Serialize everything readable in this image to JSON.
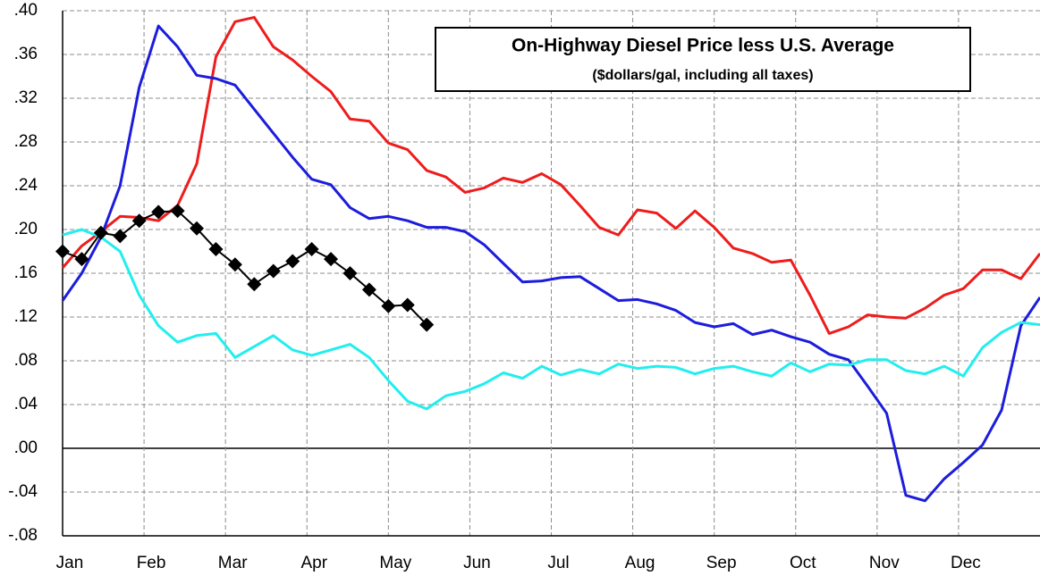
{
  "chart_data": {
    "type": "line",
    "title": "On-Highway Diesel Price  less U.S. Average",
    "subtitle": "($dollars/gal, including all taxes)",
    "x": [
      0,
      1,
      2,
      3,
      4,
      5,
      6,
      7,
      8,
      9,
      10,
      11,
      12,
      13,
      14,
      15,
      16,
      17,
      18,
      19,
      20,
      21,
      22,
      23,
      24,
      25,
      26,
      27,
      28,
      29,
      30,
      31,
      32,
      33,
      34,
      35,
      36,
      37,
      38,
      39,
      40,
      41,
      42,
      43,
      44,
      45,
      46,
      47,
      48,
      49,
      50,
      51
    ],
    "xlim": [
      0,
      51
    ],
    "xticks": [
      {
        "value": 0,
        "label": "Jan"
      },
      {
        "value": 4.25,
        "label": "Feb"
      },
      {
        "value": 8.5,
        "label": "Mar"
      },
      {
        "value": 12.75,
        "label": "Apr"
      },
      {
        "value": 17,
        "label": "May"
      },
      {
        "value": 21.25,
        "label": "Jun"
      },
      {
        "value": 25.5,
        "label": "Jul"
      },
      {
        "value": 29.75,
        "label": "Aug"
      },
      {
        "value": 34,
        "label": "Sep"
      },
      {
        "value": 38.25,
        "label": "Oct"
      },
      {
        "value": 42.5,
        "label": "Nov"
      },
      {
        "value": 46.75,
        "label": "Dec"
      }
    ],
    "ylim": [
      -0.08,
      0.4
    ],
    "yticks": [
      {
        "value": -0.08,
        "label": "-.08"
      },
      {
        "value": -0.04,
        "label": "-.04"
      },
      {
        "value": 0,
        "label": ".00"
      },
      {
        "value": 0.04,
        "label": ".04"
      },
      {
        "value": 0.08,
        "label": ".08"
      },
      {
        "value": 0.12,
        "label": ".12"
      },
      {
        "value": 0.16,
        "label": ".16"
      },
      {
        "value": 0.2,
        "label": ".20"
      },
      {
        "value": 0.24,
        "label": ".24"
      },
      {
        "value": 0.28,
        "label": ".28"
      },
      {
        "value": 0.32,
        "label": ".32"
      },
      {
        "value": 0.36,
        "label": ".36"
      },
      {
        "value": 0.4,
        "label": ".40"
      }
    ],
    "grid": true,
    "series": [
      {
        "color": "#ee1c1c",
        "values": [
          0.165,
          0.185,
          0.198,
          0.212,
          0.211,
          0.208,
          0.222,
          0.26,
          0.358,
          0.39,
          0.394,
          0.367,
          0.355,
          0.34,
          0.326,
          0.301,
          0.299,
          0.279,
          0.273,
          0.254,
          0.248,
          0.234,
          0.238,
          0.247,
          0.243,
          0.251,
          0.241,
          0.222,
          0.202,
          0.195,
          0.218,
          0.215,
          0.201,
          0.217,
          0.202,
          0.183,
          0.178,
          0.17,
          0.172,
          0.14,
          0.105,
          0.111,
          0.122,
          0.12,
          0.119,
          0.128,
          0.14,
          0.146,
          0.163,
          0.163,
          0.155,
          0.178
        ]
      },
      {
        "color": "#1c1cdd",
        "values": [
          0.135,
          0.16,
          0.193,
          0.24,
          0.33,
          0.386,
          0.367,
          0.341,
          0.338,
          0.332,
          0.31,
          0.288,
          0.266,
          0.246,
          0.241,
          0.22,
          0.21,
          0.212,
          0.208,
          0.202,
          0.202,
          0.198,
          0.186,
          0.169,
          0.152,
          0.153,
          0.156,
          0.157,
          0.146,
          0.135,
          0.136,
          0.132,
          0.126,
          0.115,
          0.111,
          0.114,
          0.104,
          0.108,
          0.102,
          0.097,
          0.086,
          0.081,
          0.057,
          0.032,
          -0.043,
          -0.048,
          -0.028,
          -0.013,
          0.003,
          0.035,
          0.112,
          0.138
        ]
      },
      {
        "color": "#22eeee",
        "values": [
          0.195,
          0.2,
          0.193,
          0.18,
          0.14,
          0.112,
          0.097,
          0.103,
          0.105,
          0.083,
          0.093,
          0.103,
          0.09,
          0.085,
          0.09,
          0.095,
          0.083,
          0.062,
          0.043,
          0.036,
          0.048,
          0.052,
          0.059,
          0.069,
          0.064,
          0.075,
          0.067,
          0.072,
          0.068,
          0.077,
          0.073,
          0.075,
          0.074,
          0.068,
          0.073,
          0.075,
          0.07,
          0.066,
          0.078,
          0.07,
          0.077,
          0.076,
          0.081,
          0.081,
          0.071,
          0.068,
          0.075,
          0.066,
          0.092,
          0.106,
          0.115,
          0.113
        ]
      },
      {
        "color": "#000000",
        "marker": "diamond",
        "values": [
          0.18,
          0.173,
          0.197,
          0.194,
          0.208,
          0.216,
          0.217,
          0.201,
          0.182,
          0.168,
          0.15,
          0.162,
          0.171,
          0.182,
          0.173,
          0.16,
          0.145,
          0.13,
          0.131,
          0.113,
          null,
          null,
          null,
          null,
          null,
          null,
          null,
          null,
          null,
          null,
          null,
          null,
          null,
          null,
          null,
          null,
          null,
          null,
          null,
          null,
          null,
          null,
          null,
          null,
          null,
          null,
          null,
          null,
          null,
          null,
          null,
          null
        ]
      }
    ]
  }
}
